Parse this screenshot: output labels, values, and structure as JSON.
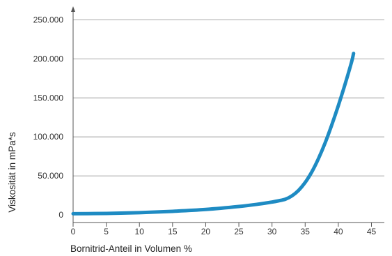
{
  "chart_data": {
    "type": "line",
    "title": "",
    "xlabel": "Bornitrid-Anteil in Volumen %",
    "ylabel": "Viskosität in mPa*s",
    "xlim": [
      0,
      47.5
    ],
    "ylim": [
      0,
      260000
    ],
    "x_ticks": [
      0,
      5,
      10,
      15,
      20,
      25,
      30,
      35,
      40,
      45
    ],
    "x_tick_labels": [
      "0",
      "5",
      "10",
      "15",
      "20",
      "25",
      "30",
      "35",
      "40",
      "45"
    ],
    "y_ticks": [
      0,
      50000,
      100000,
      150000,
      200000,
      250000
    ],
    "y_tick_labels": [
      "0",
      "50.000",
      "100.000",
      "150.000",
      "200.000",
      "250.000"
    ],
    "grid": "horizontal",
    "line_color": "#1e8bc3",
    "series": [
      {
        "name": "",
        "x": [
          0,
          5,
          10,
          15,
          20,
          25,
          28,
          30,
          31,
          32,
          33,
          34,
          35,
          36,
          37,
          38,
          39,
          40,
          41,
          42,
          42.3
        ],
        "y": [
          1500,
          1800,
          2800,
          4500,
          6900,
          10700,
          13800,
          16400,
          18000,
          20000,
          24300,
          31300,
          41500,
          55000,
          72000,
          92000,
          115000,
          140000,
          167000,
          196000,
          207000
        ]
      }
    ]
  }
}
